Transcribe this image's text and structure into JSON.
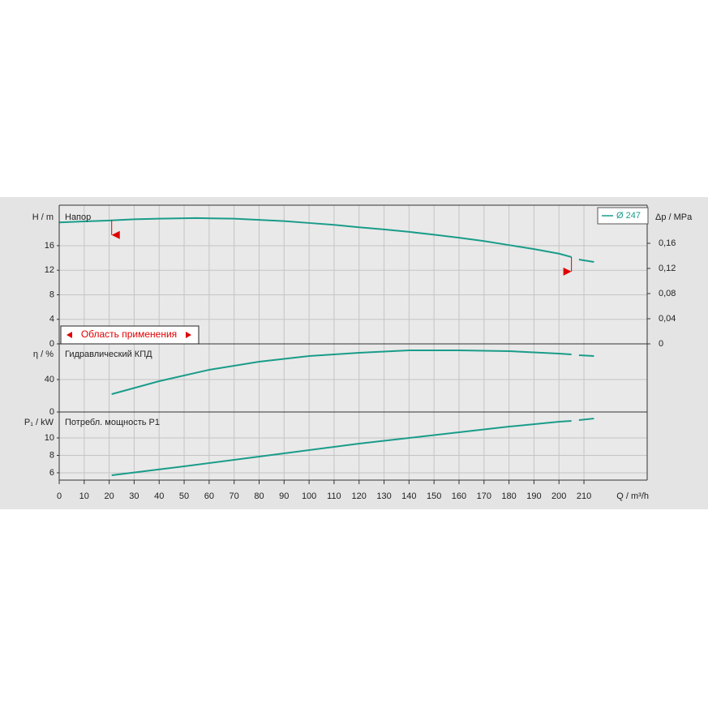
{
  "chart_data": [
    {
      "type": "line",
      "title": "Напор",
      "ylabel": "H / m",
      "y2label": "Δp / MPa",
      "xlim": [
        0,
        235.3
      ],
      "ylim": [
        0,
        22.6
      ],
      "yticks": [
        0,
        4,
        8,
        12,
        16
      ],
      "y2lim": [
        0,
        0.2206
      ],
      "y2ticks": [
        0,
        {
          "value": 0.04,
          "label": "0,04"
        },
        {
          "value": 0.08,
          "label": "0,08"
        },
        {
          "value": 0.12,
          "label": "0,12"
        },
        {
          "value": 0.16,
          "label": "0,16"
        }
      ],
      "x": [
        0,
        10,
        20,
        30,
        40,
        55,
        70,
        80,
        90,
        100,
        110,
        120,
        130,
        140,
        150,
        160,
        170,
        180,
        190,
        200,
        205,
        207,
        208,
        214
      ],
      "series": [
        {
          "name": "Ø 247",
          "color": "#1a9c8a",
          "values": [
            19.8,
            19.95,
            20.1,
            20.3,
            20.4,
            20.5,
            20.4,
            20.2,
            20.0,
            19.7,
            19.4,
            19.0,
            18.65,
            18.25,
            17.8,
            17.3,
            16.75,
            16.1,
            15.45,
            14.7,
            14.15,
            null,
            13.75,
            13.35
          ]
        }
      ],
      "grid": true,
      "annotation": {
        "text": "Область применения",
        "x": [
          21,
          205
        ]
      }
    },
    {
      "type": "line",
      "title": "Гидравлический КПД",
      "ylabel": "η / %",
      "xlim": [
        0,
        235.3
      ],
      "ylim": [
        0,
        84
      ],
      "yticks": [
        0,
        40
      ],
      "x": [
        21,
        40,
        60,
        80,
        100,
        120,
        140,
        160,
        180,
        200,
        205,
        207,
        208,
        214
      ],
      "series": [
        {
          "color": "#1a9c8a",
          "values": [
            22,
            38,
            52,
            62,
            69,
            73,
            76,
            76,
            75,
            72,
            71,
            null,
            70,
            69
          ]
        }
      ],
      "grid": true
    },
    {
      "type": "line",
      "title": "Потребл. мощность P1",
      "ylabel": "P₁ / kW",
      "xlabel": "Q / m³/h",
      "xlim": [
        0,
        235.3
      ],
      "ylim": [
        5.16,
        12.98
      ],
      "yticks": [
        6,
        8,
        10
      ],
      "xticks": [
        0,
        10,
        20,
        30,
        40,
        50,
        60,
        70,
        80,
        90,
        100,
        110,
        120,
        130,
        140,
        150,
        160,
        170,
        180,
        190,
        200,
        210
      ],
      "x": [
        21,
        50,
        80,
        100,
        120,
        140,
        160,
        180,
        200,
        205,
        207,
        208,
        214
      ],
      "series": [
        {
          "color": "#1a9c8a",
          "values": [
            5.72,
            6.74,
            7.86,
            8.6,
            9.35,
            10.0,
            10.65,
            11.3,
            11.86,
            11.95,
            null,
            12.05,
            12.23
          ]
        }
      ],
      "grid": true
    }
  ]
}
